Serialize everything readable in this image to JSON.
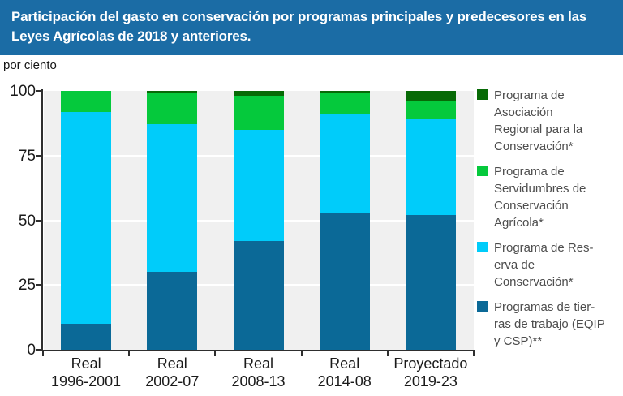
{
  "header": {
    "title": "Participación del gasto en conservación por programas principales y predecesores en las Leyes Agrícolas de 2018 y anteriores.",
    "bg_color": "#1b6ca5",
    "text_color": "#ffffff"
  },
  "unit_label": "por ciento",
  "chart_data": {
    "type": "bar",
    "stacked": true,
    "title": "Participación del gasto en conservación por programas principales y predecesores en las Leyes Agrícolas de 2018 y anteriores.",
    "ylabel": "por ciento",
    "xlabel": "",
    "ylim": [
      0,
      100
    ],
    "yticks": [
      "0",
      "25",
      "50",
      "75",
      "100"
    ],
    "ytick_values": [
      0,
      25,
      50,
      75,
      100
    ],
    "grid": "horizontal-white",
    "plot_bg": "#f0f0f0",
    "axis_color": "#2e2e2e",
    "legend_position": "right",
    "categories": [
      [
        "Real",
        "1996-2001"
      ],
      [
        "Real",
        "2002-07"
      ],
      [
        "Real",
        "2008-13"
      ],
      [
        "Real",
        "2014-08"
      ],
      [
        "Proyectado",
        "2019-23"
      ]
    ],
    "series": [
      {
        "name": "Programas de tierras de trabajo (EQIP y CSP)**",
        "color": "#0b6997",
        "values": [
          10,
          30,
          42,
          53,
          52
        ]
      },
      {
        "name": "Programa de Reserva de Conservación*",
        "color": "#00ccfa",
        "values": [
          82,
          57,
          43,
          38,
          37
        ]
      },
      {
        "name": "Programa de Servidumbres de Conservación Agrícola*",
        "color": "#05c93c",
        "values": [
          8,
          12,
          13,
          8,
          7
        ]
      },
      {
        "name": "Programa de Asociación Regional para la Conservación*",
        "color": "#076a06",
        "values": [
          0,
          1,
          2,
          1,
          4
        ]
      }
    ]
  },
  "legend": {
    "items": [
      {
        "id": "rcpp",
        "label": "Programa de\nAsociación\nRegional para la\nConservación*",
        "color": "#076a06"
      },
      {
        "id": "acep",
        "label": "Programa de\nServidumbres de\nConservación\nAgrícola*",
        "color": "#05c93c"
      },
      {
        "id": "crp",
        "label": "Programa de Res-\nerva de\nConservación*",
        "color": "#00ccfa"
      },
      {
        "id": "working-lands",
        "label": "Programas de tier-\nras de trabajo (EQIP\ny CSP)**",
        "color": "#0b6997"
      }
    ]
  }
}
